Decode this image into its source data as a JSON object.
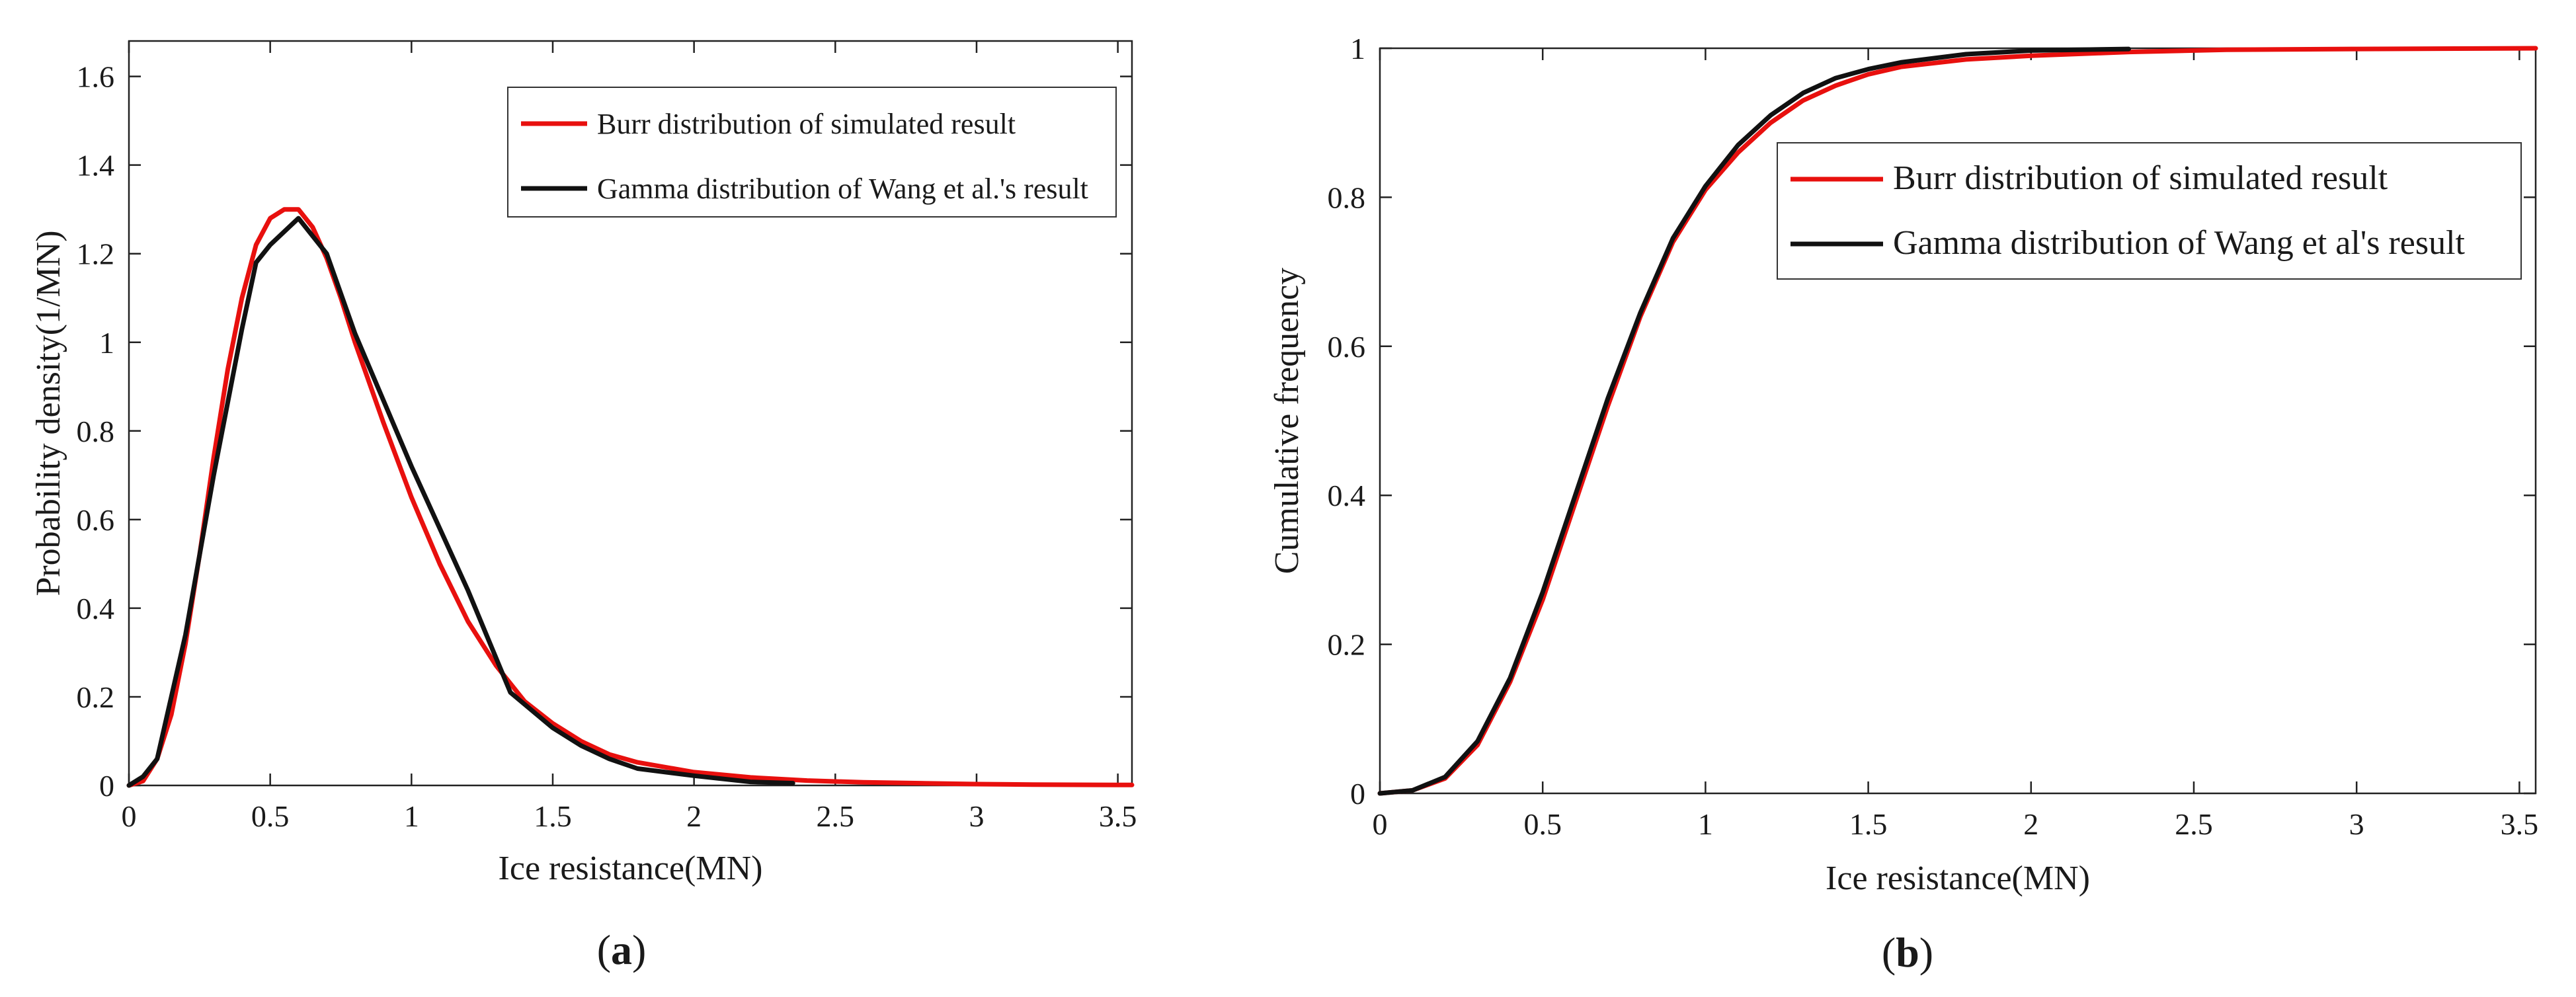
{
  "chart_data": [
    {
      "type": "line",
      "panel_label": "(a)",
      "xlabel": "Ice resistance(MN)",
      "ylabel": "Probability density(1/MN)",
      "xlim": [
        0,
        3.55
      ],
      "ylim": [
        0,
        1.68
      ],
      "xticks": [
        "0",
        "0.5",
        "1",
        "1.5",
        "2",
        "2.5",
        "3",
        "3.5"
      ],
      "yticks": [
        "0",
        "0.2",
        "0.4",
        "0.6",
        "0.8",
        "1",
        "1.2",
        "1.4",
        "1.6"
      ],
      "grid": false,
      "legend_position": "top-right",
      "series": [
        {
          "name": "Burr distribution of simulated result",
          "color": "#e8100e",
          "x": [
            0,
            0.05,
            0.1,
            0.15,
            0.2,
            0.25,
            0.3,
            0.35,
            0.4,
            0.45,
            0.5,
            0.55,
            0.6,
            0.65,
            0.7,
            0.75,
            0.8,
            0.9,
            1.0,
            1.1,
            1.2,
            1.3,
            1.4,
            1.5,
            1.6,
            1.7,
            1.8,
            2.0,
            2.2,
            2.4,
            2.6,
            2.8,
            3.0,
            3.2,
            3.5,
            3.55
          ],
          "y": [
            0,
            0.01,
            0.06,
            0.16,
            0.32,
            0.52,
            0.74,
            0.94,
            1.1,
            1.22,
            1.28,
            1.3,
            1.3,
            1.26,
            1.19,
            1.1,
            1.0,
            0.82,
            0.65,
            0.5,
            0.37,
            0.27,
            0.19,
            0.14,
            0.1,
            0.07,
            0.052,
            0.03,
            0.018,
            0.011,
            0.007,
            0.005,
            0.003,
            0.002,
            0.001,
            0.001
          ]
        },
        {
          "name": "Gamma distribution of Wang et al.'s result",
          "color": "#111111",
          "x": [
            0,
            0.05,
            0.1,
            0.2,
            0.3,
            0.4,
            0.45,
            0.5,
            0.6,
            0.7,
            0.8,
            0.9,
            1.0,
            1.1,
            1.2,
            1.35,
            1.5,
            1.6,
            1.7,
            1.8,
            2.0,
            2.2,
            2.35
          ],
          "y": [
            0,
            0.02,
            0.06,
            0.34,
            0.7,
            1.03,
            1.18,
            1.22,
            1.28,
            1.2,
            1.02,
            0.87,
            0.72,
            0.58,
            0.44,
            0.21,
            0.13,
            0.09,
            0.06,
            0.038,
            0.022,
            0.008,
            0.005
          ]
        }
      ]
    },
    {
      "type": "line",
      "panel_label": "(b)",
      "xlabel": "Ice resistance(MN)",
      "ylabel": "Cumulative frequency",
      "xlim": [
        0,
        3.55
      ],
      "ylim": [
        0,
        1
      ],
      "xticks": [
        "0",
        "0.5",
        "1",
        "1.5",
        "2",
        "2.5",
        "3",
        "3.5"
      ],
      "yticks": [
        "0",
        "0.2",
        "0.4",
        "0.6",
        "0.8",
        "1"
      ],
      "grid": false,
      "legend_position": "upper-middle-right",
      "series": [
        {
          "name": "Burr distribution of simulated result",
          "color": "#e8100e",
          "x": [
            0,
            0.1,
            0.2,
            0.3,
            0.4,
            0.5,
            0.6,
            0.7,
            0.8,
            0.9,
            1.0,
            1.1,
            1.2,
            1.3,
            1.4,
            1.5,
            1.6,
            1.8,
            2.0,
            2.3,
            2.6,
            3.0,
            3.55
          ],
          "y": [
            0,
            0.004,
            0.02,
            0.065,
            0.15,
            0.26,
            0.39,
            0.52,
            0.64,
            0.74,
            0.81,
            0.86,
            0.9,
            0.93,
            0.95,
            0.965,
            0.975,
            0.985,
            0.99,
            0.995,
            0.998,
            0.999,
            1.0
          ]
        },
        {
          "name": "Gamma distribution of Wang et al's result",
          "color": "#111111",
          "x": [
            0,
            0.1,
            0.2,
            0.3,
            0.4,
            0.5,
            0.6,
            0.7,
            0.8,
            0.9,
            1.0,
            1.1,
            1.2,
            1.3,
            1.4,
            1.5,
            1.6,
            1.8,
            2.0,
            2.3
          ],
          "y": [
            0,
            0.004,
            0.022,
            0.07,
            0.155,
            0.27,
            0.4,
            0.53,
            0.645,
            0.745,
            0.815,
            0.87,
            0.91,
            0.94,
            0.96,
            0.972,
            0.981,
            0.992,
            0.997,
            0.999
          ]
        }
      ]
    }
  ]
}
